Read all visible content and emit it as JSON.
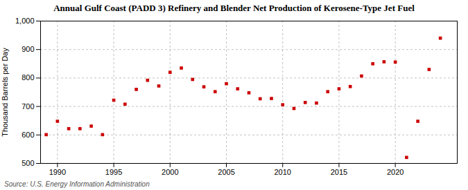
{
  "chart_data": {
    "type": "scatter",
    "title": "Annual Gulf Coast (PADD 3) Refinery and Blender Net Production of Kerosene-Type Jet Fuel",
    "ylabel": "Thousand Barrels per Day",
    "annotations": [
      "Source: U.S. Energy Information Administration"
    ],
    "x": [
      1989,
      1990,
      1991,
      1992,
      1993,
      1994,
      1995,
      1996,
      1997,
      1998,
      1999,
      2000,
      2001,
      2002,
      2003,
      2004,
      2005,
      2006,
      2007,
      2008,
      2009,
      2010,
      2011,
      2012,
      2013,
      2014,
      2015,
      2016,
      2017,
      2018,
      2019,
      2020,
      2021,
      2022,
      2023,
      2024
    ],
    "values": [
      601,
      648,
      622,
      622,
      631,
      601,
      722,
      708,
      760,
      792,
      772,
      820,
      835,
      795,
      769,
      752,
      780,
      762,
      748,
      727,
      728,
      706,
      693,
      714,
      712,
      752,
      762,
      770,
      807,
      850,
      857,
      856,
      521,
      648,
      830,
      940
    ],
    "color": "#cc0000",
    "marker": "square",
    "xlim": [
      1988.5,
      2025.5
    ],
    "xticks": [
      1990,
      1995,
      2000,
      2005,
      2010,
      2015,
      2020
    ],
    "ylim": [
      500,
      1000
    ],
    "yticks": [
      500,
      600,
      700,
      800,
      900,
      {
        "value": 1000,
        "label": "1,000"
      }
    ],
    "grid": true
  }
}
